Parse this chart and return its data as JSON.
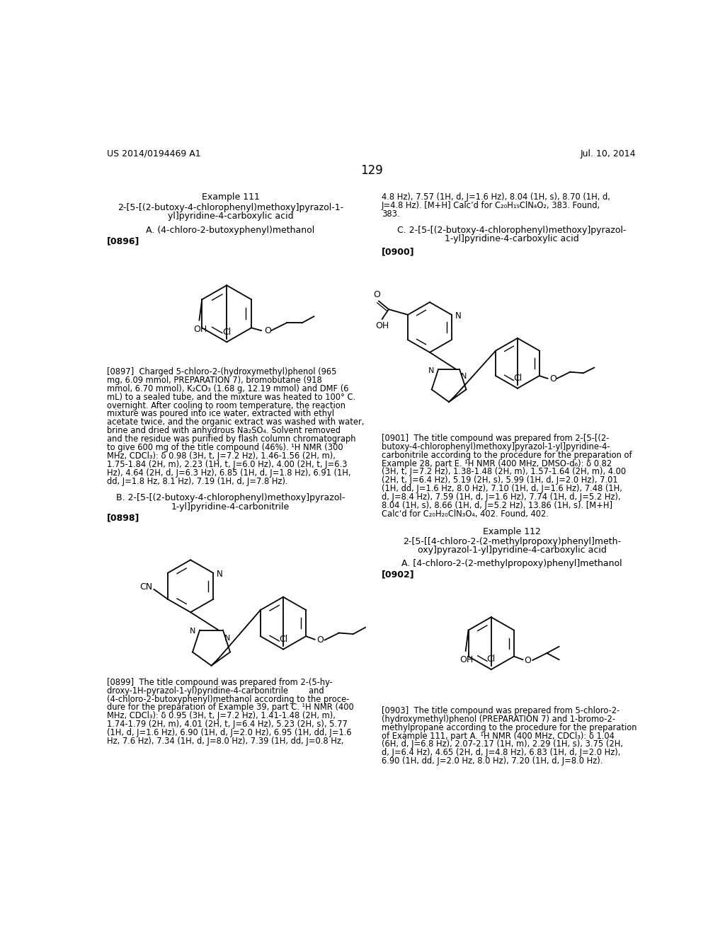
{
  "bg_color": "#ffffff",
  "header_left": "US 2014/0194469 A1",
  "header_right": "Jul. 10, 2014",
  "page_number": "129"
}
